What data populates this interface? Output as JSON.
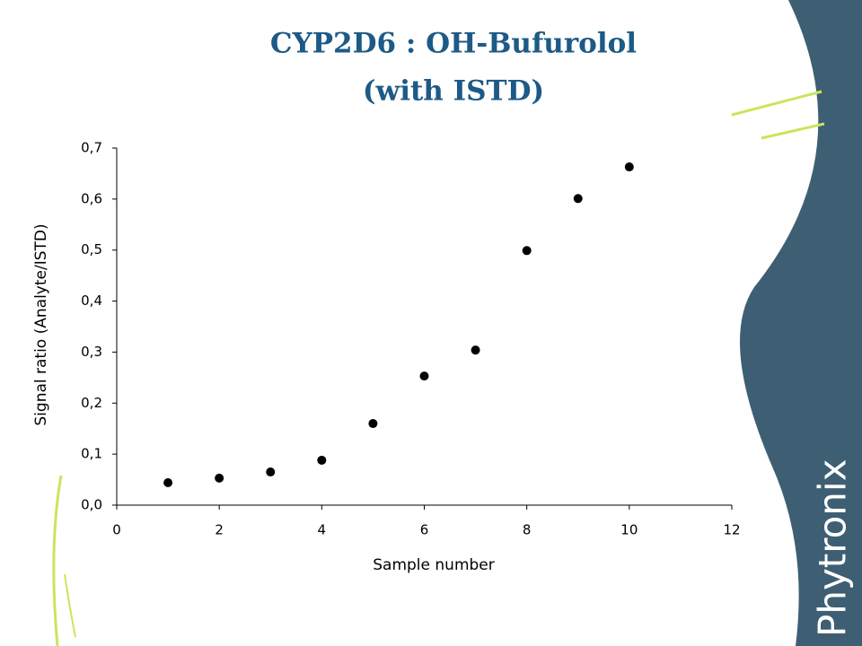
{
  "chart_data": {
    "type": "scatter",
    "title": [
      "CYP2D6 : OH-Bufurolol",
      "(with ISTD)"
    ],
    "x_label": "Sample number",
    "y_label": "Signal ratio (Analyte/ISTD)",
    "x": [
      1,
      2,
      3,
      4,
      5,
      6,
      7,
      8,
      9,
      10
    ],
    "values": [
      0.044,
      0.053,
      0.065,
      0.088,
      0.16,
      0.253,
      0.304,
      0.499,
      0.601,
      0.663
    ],
    "color": "#000000",
    "xlim": [
      0,
      12
    ],
    "xticks": [
      0,
      2,
      4,
      6,
      8,
      10,
      12
    ],
    "ylim": [
      0,
      0.7
    ],
    "yticks": [
      {
        "value": 0,
        "label": "0,0"
      },
      {
        "value": 0.1,
        "label": "0,1"
      },
      {
        "value": 0.2,
        "label": "0,2"
      },
      {
        "value": 0.3,
        "label": "0,3"
      },
      {
        "value": 0.4,
        "label": "0,4"
      },
      {
        "value": 0.5,
        "label": "0,5"
      },
      {
        "value": 0.6,
        "label": "0,6"
      },
      {
        "value": 0.7,
        "label": "0,7"
      }
    ],
    "grid": false
  },
  "logo": "Phytronix"
}
